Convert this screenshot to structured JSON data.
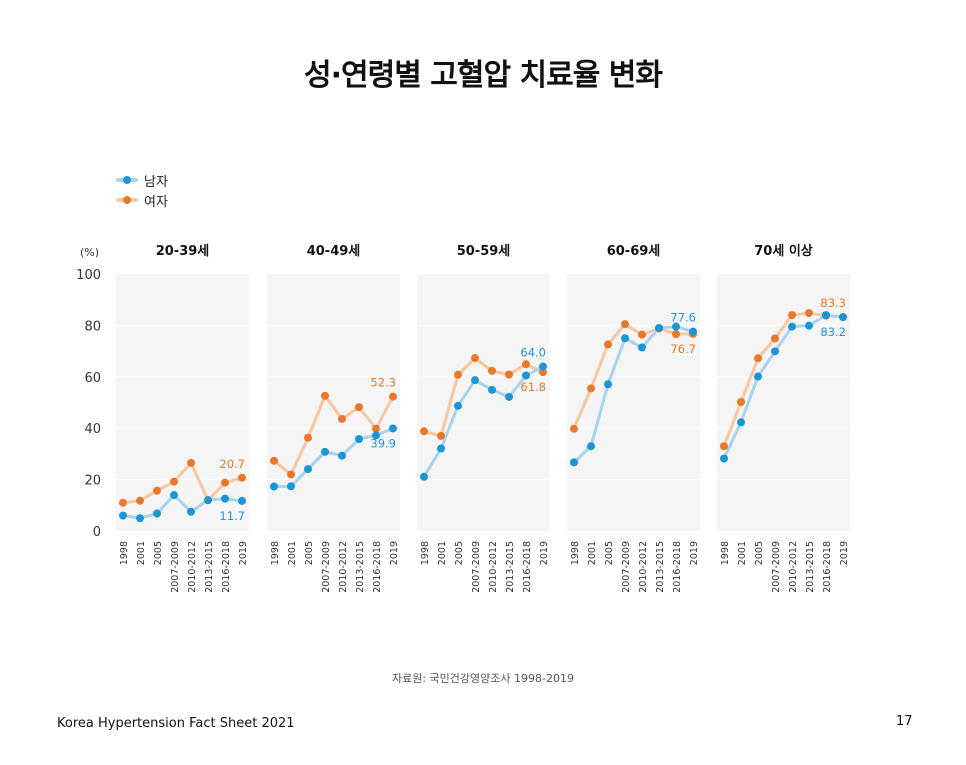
{
  "title": "성·연령별 고혈압 치료율 변화",
  "legend": [
    {
      "name": "남자",
      "color": "#1b95d4",
      "line_color": "#a8d3ee"
    },
    {
      "name": "여자",
      "color": "#e8782c",
      "line_color": "#f7c79f"
    }
  ],
  "y_unit": "(%)",
  "source": "자료원: 국민건강영양조사 1998-2019",
  "footer": "Korea Hypertension Fact Sheet 2021",
  "page_number": "17",
  "chart_data": {
    "type": "line",
    "ylim": [
      0,
      100
    ],
    "yticks": [
      "0",
      "20",
      "40",
      "60",
      "80",
      "100"
    ],
    "x": [
      "1998",
      "2001",
      "2005",
      "2007-2009",
      "2010-2012",
      "2013-2015",
      "2016-2018",
      "2019"
    ],
    "panels": [
      {
        "title": "20-39세",
        "series": [
          {
            "name": "남자",
            "values": [
              6.0,
              5.0,
              6.8,
              14.0,
              7.5,
              12.0,
              12.6,
              11.7
            ]
          },
          {
            "name": "여자",
            "values": [
              11.0,
              11.8,
              15.7,
              19.2,
              26.5,
              12.0,
              18.8,
              20.7
            ]
          }
        ],
        "labels": {
          "남자": "11.7",
          "여자": "20.7"
        }
      },
      {
        "title": "40-49세",
        "series": [
          {
            "name": "남자",
            "values": [
              17.3,
              17.4,
              24.1,
              30.8,
              29.3,
              35.8,
              37.2,
              39.9
            ]
          },
          {
            "name": "여자",
            "values": [
              27.3,
              22.0,
              36.3,
              52.6,
              43.6,
              48.2,
              39.8,
              52.3
            ]
          }
        ],
        "labels": {
          "남자": "39.9",
          "여자": "52.3"
        }
      },
      {
        "title": "50-59세",
        "series": [
          {
            "name": "남자",
            "values": [
              21.1,
              32.1,
              48.7,
              58.7,
              54.9,
              52.2,
              60.5,
              64.0
            ]
          },
          {
            "name": "여자",
            "values": [
              38.8,
              37.0,
              60.8,
              67.3,
              62.3,
              60.9,
              64.9,
              61.8
            ]
          }
        ],
        "labels": {
          "남자": "64.0",
          "여자": "61.8"
        }
      },
      {
        "title": "60-69세",
        "series": [
          {
            "name": "남자",
            "values": [
              26.7,
              33.0,
              57.1,
              75.0,
              71.4,
              79.0,
              79.5,
              77.6
            ]
          },
          {
            "name": "여자",
            "values": [
              39.8,
              55.5,
              72.6,
              80.5,
              76.4,
              78.8,
              76.6,
              76.7
            ]
          }
        ],
        "labels": {
          "남자": "77.6",
          "여자": "76.7"
        }
      },
      {
        "title": "70세 이상",
        "series": [
          {
            "name": "남자",
            "values": [
              28.2,
              42.3,
              60.1,
              69.9,
              79.5,
              79.9,
              84.0,
              83.2
            ]
          },
          {
            "name": "여자",
            "values": [
              33.0,
              50.2,
              67.2,
              74.9,
              84.0,
              84.8,
              83.8,
              83.3
            ]
          }
        ],
        "labels": {
          "남자": "83.2",
          "여자": "83.3"
        }
      }
    ]
  }
}
